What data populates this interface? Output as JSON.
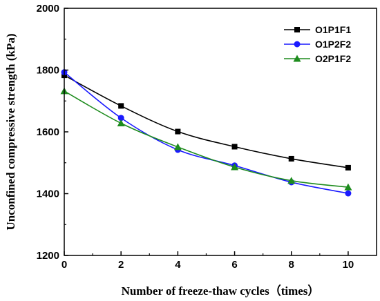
{
  "chart_data": {
    "type": "line",
    "xlabel": "Number of freeze-thaw cycles（times）",
    "ylabel": "Unconfined compressive strength (kPa)",
    "xlim": [
      0,
      11
    ],
    "ylim": [
      1200,
      2000
    ],
    "xticks": [
      0,
      2,
      4,
      6,
      8,
      10
    ],
    "yticks": [
      1200,
      1400,
      1600,
      1800,
      2000
    ],
    "grid": false,
    "legend_position": "top-right",
    "x": [
      0,
      2,
      4,
      6,
      8,
      10
    ],
    "series": [
      {
        "name": "O1P1F1",
        "values": [
          1783,
          1684,
          1601,
          1552,
          1513,
          1484
        ],
        "color": "#000000",
        "marker": "square"
      },
      {
        "name": "O1P2F2",
        "values": [
          1793,
          1645,
          1542,
          1491,
          1437,
          1401
        ],
        "color": "#1a1aff",
        "marker": "circle"
      },
      {
        "name": "O2P1F2",
        "values": [
          1732,
          1628,
          1551,
          1486,
          1442,
          1421
        ],
        "color": "#1e8c1e",
        "marker": "triangle"
      }
    ]
  }
}
